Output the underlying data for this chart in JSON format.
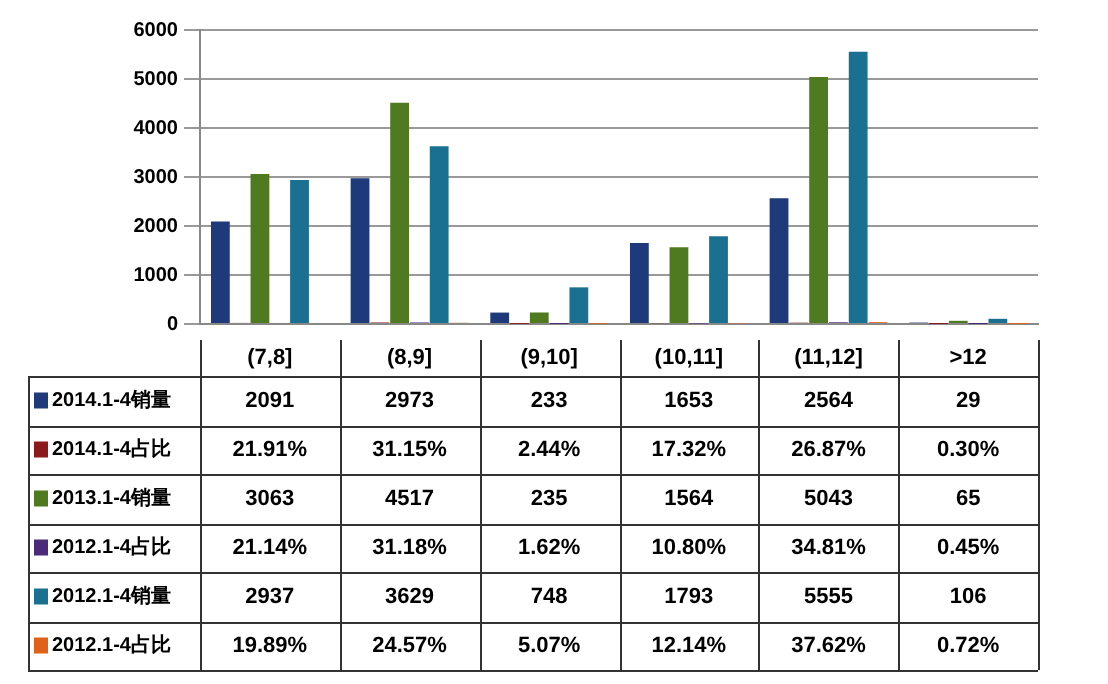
{
  "chart_data": {
    "type": "bar",
    "categories": [
      "(7,8]",
      "(8,9]",
      "(9,10]",
      "(10,11]",
      "(11,12]",
      ">12"
    ],
    "series": [
      {
        "name": "2014.1-4销量",
        "color": "#1f3a7a",
        "values": [
          2091,
          2973,
          233,
          1653,
          2564,
          29
        ],
        "value_labels": [
          "2091",
          "2973",
          "233",
          "1653",
          "2564",
          "29"
        ]
      },
      {
        "name": "2014.1-4占比",
        "color": "#8b1a1a",
        "values": [
          21.91,
          31.15,
          2.44,
          17.32,
          26.87,
          0.3
        ],
        "value_labels": [
          "21.91%",
          "31.15%",
          "2.44%",
          "17.32%",
          "26.87%",
          "0.30%"
        ]
      },
      {
        "name": "2013.1-4销量",
        "color": "#4f7a1f",
        "values": [
          3063,
          4517,
          235,
          1564,
          5043,
          65
        ],
        "value_labels": [
          "3063",
          "4517",
          "235",
          "1564",
          "5043",
          "65"
        ]
      },
      {
        "name": "2012.1-4占比",
        "color": "#4b2a7a",
        "values": [
          21.14,
          31.18,
          1.62,
          10.8,
          34.81,
          0.45
        ],
        "value_labels": [
          "21.14%",
          "31.18%",
          "1.62%",
          "10.80%",
          "34.81%",
          "0.45%"
        ]
      },
      {
        "name": "2012.1-4销量",
        "color": "#1a7090",
        "values": [
          2937,
          3629,
          748,
          1793,
          5555,
          106
        ],
        "value_labels": [
          "2937",
          "3629",
          "748",
          "1793",
          "5555",
          "106"
        ]
      },
      {
        "name": "2012.1-4占比",
        "color": "#e0621a",
        "values": [
          19.89,
          24.57,
          5.07,
          12.14,
          37.62,
          0.72
        ],
        "value_labels": [
          "19.89%",
          "24.57%",
          "5.07%",
          "12.14%",
          "37.62%",
          "0.72%"
        ]
      }
    ],
    "ylim": [
      0,
      6000
    ],
    "yticks": [
      0,
      1000,
      2000,
      3000,
      4000,
      5000,
      6000
    ],
    "grid": "y",
    "legend": "bottom left",
    "tick_labels": "y"
  }
}
